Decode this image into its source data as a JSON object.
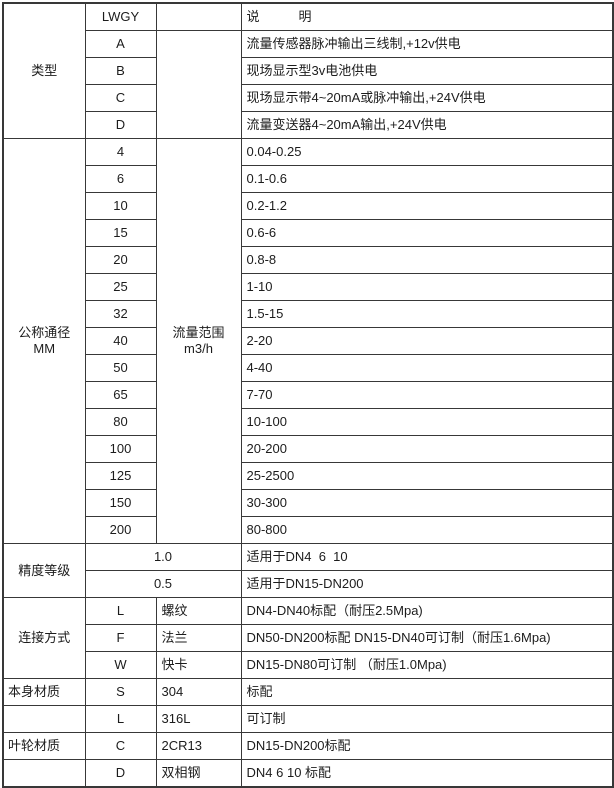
{
  "colors": {
    "border": "#383838",
    "text": "#1c1c1c",
    "background": "#ffffff"
  },
  "type_section": {
    "label": "类型",
    "code_header": "LWGY",
    "desc_header": "说　　　明",
    "rows": [
      {
        "code": "A",
        "desc": "流量传感器脉冲输出三线制,+12v供电"
      },
      {
        "code": "B",
        "desc": "现场显示型3v电池供电"
      },
      {
        "code": "C",
        "desc": "现场显示带4~20mA或脉冲输出,+24V供电"
      },
      {
        "code": "D",
        "desc": "流量变送器4~20mA输出,+24V供电"
      }
    ]
  },
  "diameter_section": {
    "label": "公称通径\nMM",
    "range_label": "流量范围\nm3/h",
    "rows": [
      {
        "size": "4",
        "range": "0.04-0.25"
      },
      {
        "size": "6",
        "range": "0.1-0.6"
      },
      {
        "size": "10",
        "range": "0.2-1.2"
      },
      {
        "size": "15",
        "range": "0.6-6"
      },
      {
        "size": "20",
        "range": "0.8-8"
      },
      {
        "size": "25",
        "range": "1-10"
      },
      {
        "size": "32",
        "range": "1.5-15"
      },
      {
        "size": "40",
        "range": "2-20"
      },
      {
        "size": "50",
        "range": "4-40"
      },
      {
        "size": "65",
        "range": "7-70"
      },
      {
        "size": "80",
        "range": "10-100"
      },
      {
        "size": "100",
        "range": "20-200"
      },
      {
        "size": "125",
        "range": "25-2500"
      },
      {
        "size": "150",
        "range": "30-300"
      },
      {
        "size": "200",
        "range": "80-800"
      }
    ]
  },
  "accuracy_section": {
    "label": "精度等级",
    "rows": [
      {
        "value": "1.0",
        "desc": "适用于DN4  6  10"
      },
      {
        "value": "0.5",
        "desc": "适用于DN15-DN200"
      }
    ]
  },
  "connection_section": {
    "label": "连接方式",
    "rows": [
      {
        "code": "L",
        "name": "螺纹",
        "desc": "DN4-DN40标配（耐压2.5Mpa)"
      },
      {
        "code": "F",
        "name": "法兰",
        "desc": "DN50-DN200标配 DN15-DN40可订制（耐压1.6Mpa)"
      },
      {
        "code": "W",
        "name": "快卡",
        "desc": "DN15-DN80可订制 （耐压1.0Mpa)"
      }
    ]
  },
  "body_material_section": {
    "label": "本身材质",
    "rows": [
      {
        "code": "S",
        "name": "304",
        "desc": "标配"
      },
      {
        "code": "L",
        "name": "316L",
        "desc": "可订制"
      }
    ]
  },
  "impeller_material_section": {
    "label": "叶轮材质",
    "rows": [
      {
        "code": "C",
        "name": "2CR13",
        "desc": "DN15-DN200标配"
      },
      {
        "code": "D",
        "name": "双相钢",
        "desc": "DN4 6 10 标配"
      }
    ]
  }
}
